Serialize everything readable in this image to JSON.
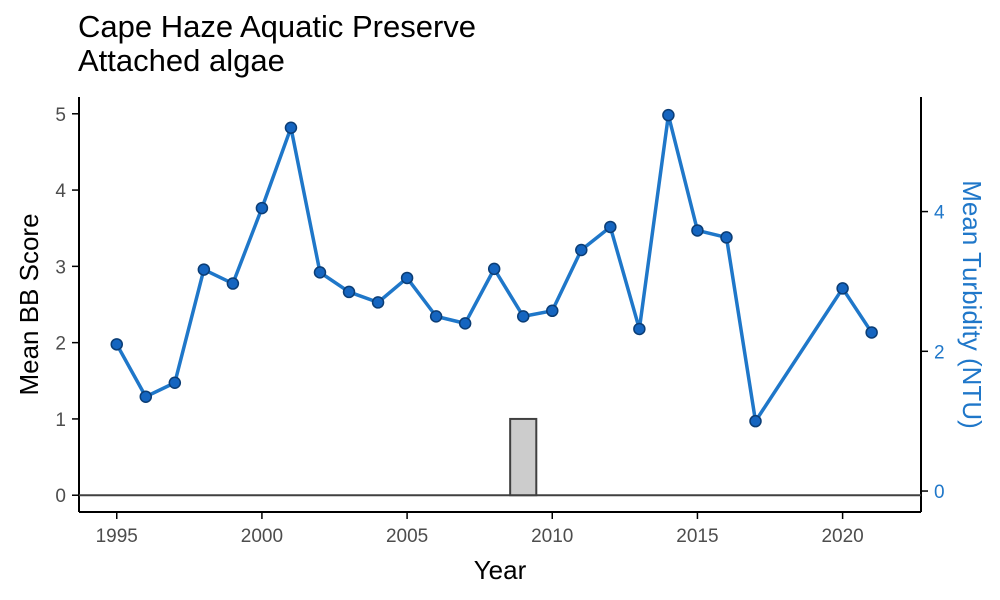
{
  "title": "Cape Haze Aquatic Preserve",
  "subtitle": "Attached algae",
  "colors": {
    "line": "#1f77c9",
    "point_fill": "#1565c0",
    "point_stroke": "#0b3d75",
    "bar_fill": "#cccccc",
    "bar_stroke": "#404040",
    "axis": "#000000",
    "right_axis": "#1f77c9",
    "tick_text": "#4d4d4d"
  },
  "chart_data": {
    "type": "line",
    "title": "Cape Haze Aquatic Preserve",
    "subtitle": "Attached algae",
    "xlabel": "Year",
    "ylabel": "Mean BB Score",
    "y2label": "Mean Turbidity (NTU)",
    "xlim": [
      1993.7,
      2022.7
    ],
    "ylim": [
      -0.22,
      5.22
    ],
    "y2lim": [
      -0.3,
      5.64
    ],
    "x_ticks": [
      1995,
      2000,
      2005,
      2010,
      2015,
      2020
    ],
    "x_tick_labels": [
      "1995",
      "2000",
      "2005",
      "2010",
      "2015",
      "2020"
    ],
    "y_ticks": [
      0,
      1,
      2,
      3,
      4,
      5
    ],
    "y_tick_labels": [
      "0",
      "1",
      "2",
      "3",
      "4",
      "5"
    ],
    "y2_ticks": [
      0,
      2,
      4
    ],
    "y2_tick_labels": [
      "0",
      "2",
      "4"
    ],
    "grid": false,
    "bars": {
      "name": "",
      "x": [
        2009
      ],
      "values": [
        1.0
      ],
      "width": 0.9
    },
    "series": [
      {
        "name": "",
        "axis": "right",
        "x": [
          1995,
          1996,
          1997,
          1998,
          1999,
          2000,
          2001,
          2002,
          2003,
          2004,
          2005,
          2006,
          2007,
          2008,
          2009,
          2010,
          2011,
          2012,
          2013,
          2014,
          2015,
          2016,
          2017,
          2020,
          2021
        ],
        "values": [
          2.1,
          1.35,
          1.55,
          3.17,
          2.97,
          4.05,
          5.2,
          3.13,
          2.85,
          2.7,
          3.05,
          2.5,
          2.4,
          3.18,
          2.5,
          2.58,
          3.45,
          3.78,
          2.32,
          5.38,
          3.73,
          3.63,
          1.0,
          2.9,
          2.27
        ]
      }
    ]
  }
}
